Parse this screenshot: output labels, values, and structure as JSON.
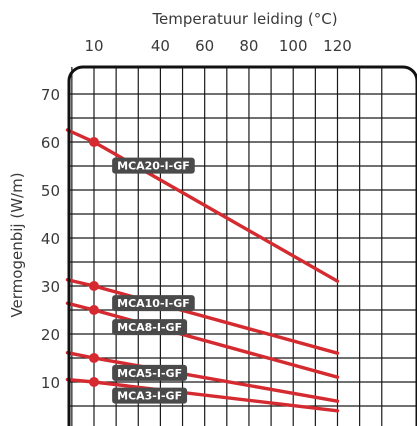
{
  "chart_data": {
    "type": "line",
    "xlabel": "Temperatuur leiding (°C)",
    "ylabel": "Vermogenbij (W/m)",
    "x_ticks": [
      10,
      40,
      60,
      80,
      100,
      120
    ],
    "highlight_tick": 10,
    "y_ticks": [
      10,
      20,
      30,
      40,
      50,
      60,
      70
    ],
    "xlim": [
      -2,
      140
    ],
    "ylim": [
      0,
      73
    ],
    "grid": true,
    "series": [
      {
        "name": "MCA20-I-GF",
        "x": [
          -2,
          10,
          120
        ],
        "y": [
          62.5,
          60,
          31
        ]
      },
      {
        "name": "MCA10-I-GF",
        "x": [
          -2,
          10,
          120
        ],
        "y": [
          31.3,
          30,
          16
        ]
      },
      {
        "name": "MCA8-I-GF",
        "x": [
          -2,
          10,
          120
        ],
        "y": [
          26.4,
          25,
          11
        ]
      },
      {
        "name": "MCA5-I-GF",
        "x": [
          -2,
          10,
          120
        ],
        "y": [
          16.1,
          15,
          6
        ]
      },
      {
        "name": "MCA3-I-GF",
        "x": [
          -2,
          10,
          120
        ],
        "y": [
          10.5,
          10,
          4
        ]
      }
    ],
    "marker_x": 10,
    "colors": {
      "line": "#d42a30",
      "label_bg": "#4a4a4a",
      "grid": "#1a1a1a",
      "highlight_tick": "#d42a30"
    }
  }
}
